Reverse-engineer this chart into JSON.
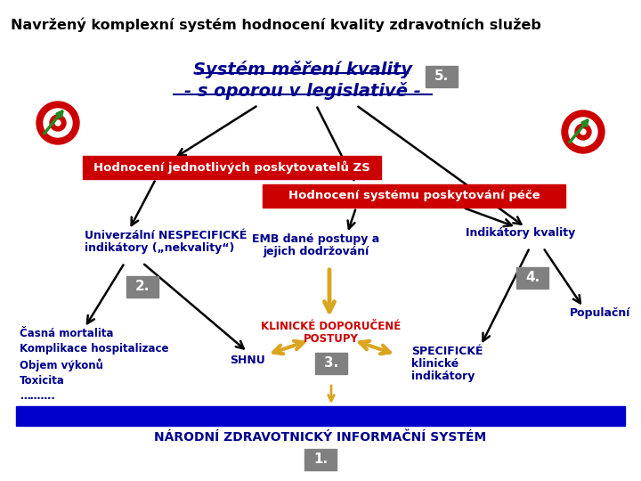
{
  "title": "Navržený komplexní systém hodnocení kvality zdravotních služeb",
  "center_line1": "Systém měření kvality",
  "center_line2": "- s oporou v legislativě -",
  "box5_label": "5.",
  "red_box1_text": "Hodnocení jednotlivých poskytovatelů ZS",
  "red_box2_text": "Hodnocení systému poskytování péče",
  "node_left_line1": "Univerzální NESPECIFICKÉ",
  "node_left_line2": "indikátory („nekvality“)",
  "box2_label": "2.",
  "node_center_line1": "EMB dané postupy a",
  "node_center_line2": "jejich dodržování",
  "node_right_text": "Indikátory kvality",
  "box4_label": "4.",
  "left_bottom_text": "Časná mortalita\nKomplikace hospitalizace\nObjem výkonů\nToxicita\n……….",
  "shnu_text": "SHNU",
  "klinicke_line1": "KLINICKÉ DOPORUČENÉ",
  "klinicke_line2": "POSTUPY",
  "box3_label": "3.",
  "specificke_line1": "SPECIFICKÉ",
  "specificke_line2": "klinické",
  "specificke_line3": "indikátory",
  "populacni_text": "Populační",
  "blue_bar_text": "NÁRODNÍ ZDRAVOTNICKÝ INFORMAČNÍ SYSTÉM",
  "box1_label": "1.",
  "bg_color": "#ffffff",
  "title_color": "#000000",
  "center_text_color": "#00008B",
  "red_box_color": "#CC0000",
  "red_box_text_color": "#ffffff",
  "node_text_color": "#00008B",
  "klinicke_color": "#CC0000",
  "blue_bar_color": "#0000CC",
  "blue_bar_text_color": "#00008B",
  "box_label_bg": "#808080",
  "box_label_color": "#ffffff",
  "arrow_color": "#000000",
  "gold_arrow_color": "#DAA520"
}
